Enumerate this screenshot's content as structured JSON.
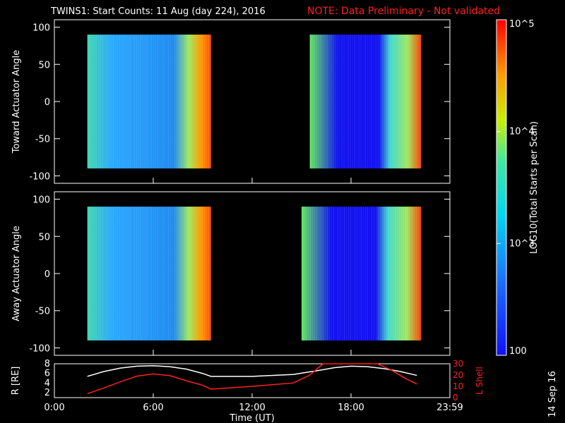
{
  "header": {
    "title": "TWINS1: Start Counts: 11 Aug (day 224), 2016",
    "note": "NOTE: Data Preliminary - Not validated"
  },
  "footer": {
    "date_stamp": "14 Sep 16"
  },
  "colorbar": {
    "label": "LOG10(Total Starts per Scan)",
    "tick_labels": [
      "10^5",
      "10^4",
      "10^3",
      "100"
    ],
    "log_range": [
      2,
      5
    ]
  },
  "chart_data": [
    {
      "type": "heatmap",
      "ylabel": "Toward Actuator Angle",
      "ylim": [
        -110,
        110
      ],
      "yticks": [
        -100,
        -50,
        0,
        50,
        100
      ],
      "xlim_hours": [
        0,
        24
      ],
      "data_coverage": [
        {
          "start_time": "2:00",
          "end_time": "9:30"
        },
        {
          "start_time": "14:90",
          "end_time": "22:15"
        }
      ]
    },
    {
      "type": "heatmap",
      "ylabel": "Away Actuator Angle",
      "ylim": [
        -110,
        110
      ],
      "yticks": [
        -100,
        -50,
        0,
        50,
        100
      ],
      "xlim_hours": [
        0,
        24
      ],
      "data_coverage": [
        {
          "start_time": "2:00",
          "end_time": "9:30"
        },
        {
          "start_time": "15:00",
          "end_time": "22:15"
        }
      ]
    },
    {
      "type": "line",
      "ylabel": "R [RE]",
      "ylabel_right": "L Shell",
      "ylim": [
        1,
        8
      ],
      "yticks": [
        2,
        4,
        6,
        8
      ],
      "ylim_right": [
        0,
        30
      ],
      "yticks_right": [
        0,
        10,
        20,
        30
      ],
      "xlabel": "Time (UT)",
      "x_tick_labels": [
        "0:00",
        "6:00",
        "12:00",
        "18:00",
        "23:59"
      ],
      "series": [
        {
          "color": "#ffffff",
          "x": [
            2,
            3,
            4,
            5,
            6,
            7,
            8,
            9,
            9.5,
            12,
            14.5,
            16,
            17,
            18,
            19,
            20,
            21,
            22
          ],
          "y": [
            5.4,
            6.4,
            7.1,
            7.5,
            7.6,
            7.4,
            6.9,
            6.0,
            5.4,
            5.4,
            5.8,
            6.6,
            7.2,
            7.5,
            7.4,
            7.0,
            6.4,
            5.6
          ]
        },
        {
          "color": "#ff2020",
          "x": [
            2,
            3,
            4,
            5,
            6,
            7,
            8,
            9,
            9.5,
            12,
            14.5,
            15.5,
            16.3,
            19.6,
            20.5,
            21.3,
            22
          ],
          "y": [
            3.5,
            8.5,
            14,
            19,
            21,
            19.5,
            15,
            11,
            7.5,
            10,
            13,
            20,
            31,
            31,
            24,
            17,
            12
          ]
        }
      ]
    }
  ]
}
